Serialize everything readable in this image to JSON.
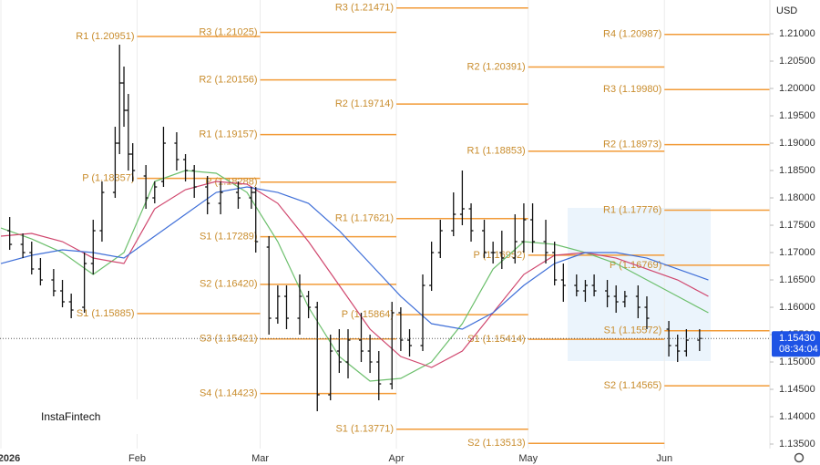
{
  "chart_data": {
    "type": "ohlc",
    "currency": "USD",
    "watermark": "InstaFintech",
    "xlim": [
      0,
      175
    ],
    "ylim": [
      1.13417,
      1.21617
    ],
    "grid": "x",
    "xticks": [
      {
        "value": 0,
        "label": "2026"
      },
      {
        "value": 31,
        "label": "Feb"
      },
      {
        "value": 59,
        "label": "Mar"
      },
      {
        "value": 90,
        "label": "Apr"
      },
      {
        "value": 120,
        "label": "May"
      },
      {
        "value": 151,
        "label": "Jun"
      }
    ],
    "yticks": [
      {
        "value": 1.135,
        "label": "1.13500"
      },
      {
        "value": 1.14,
        "label": "1.14000"
      },
      {
        "value": 1.145,
        "label": "1.14500"
      },
      {
        "value": 1.15,
        "label": "1.15000"
      },
      {
        "value": 1.155,
        "label": "1.15500"
      },
      {
        "value": 1.16,
        "label": "1.16000"
      },
      {
        "value": 1.165,
        "label": "1.16500"
      },
      {
        "value": 1.17,
        "label": "1.17000"
      },
      {
        "value": 1.175,
        "label": "1.17500"
      },
      {
        "value": 1.18,
        "label": "1.18000"
      },
      {
        "value": 1.185,
        "label": "1.18500"
      },
      {
        "value": 1.19,
        "label": "1.19000"
      },
      {
        "value": 1.195,
        "label": "1.19500"
      },
      {
        "value": 1.2,
        "label": "1.20000"
      },
      {
        "value": 1.205,
        "label": "1.20500"
      },
      {
        "value": 1.21,
        "label": "1.21000"
      }
    ],
    "last_price": {
      "value": 1.1543,
      "label": "1.15430",
      "color": "#1e53e5"
    },
    "countdown": "08:34:04",
    "bar_color": "#111111",
    "ohlc": {
      "x": [
        2,
        5,
        7,
        9,
        12,
        14,
        16,
        19,
        21,
        23,
        26,
        27,
        28,
        29,
        30,
        33,
        35,
        37,
        40,
        42,
        44,
        47,
        50,
        54,
        57,
        58,
        61,
        63,
        65,
        68,
        70,
        72,
        75,
        77,
        79,
        82,
        84,
        86,
        89,
        91,
        93,
        96,
        98,
        100,
        103,
        105,
        107,
        110,
        112,
        114,
        117,
        119,
        121,
        124,
        126,
        128,
        131,
        133,
        135,
        138,
        140,
        142,
        145,
        147,
        152,
        154,
        156,
        159
      ],
      "open": [
        1.174,
        1.1715,
        1.17,
        1.167,
        1.165,
        1.163,
        1.161,
        1.16,
        1.168,
        1.174,
        1.181,
        1.19,
        1.201,
        1.196,
        1.188,
        1.184,
        1.18,
        1.183,
        1.19,
        1.187,
        1.185,
        1.182,
        1.179,
        1.181,
        1.18,
        1.181,
        1.171,
        1.158,
        1.162,
        1.158,
        1.162,
        1.16,
        1.144,
        1.152,
        1.15,
        1.154,
        1.152,
        1.15,
        1.146,
        1.159,
        1.154,
        1.153,
        1.164,
        1.17,
        1.174,
        1.177,
        1.178,
        1.174,
        1.17,
        1.17,
        1.169,
        1.172,
        1.176,
        1.172,
        1.17,
        1.165,
        1.164,
        1.163,
        1.164,
        1.163,
        1.162,
        1.161,
        1.162,
        1.16,
        1.156,
        1.153,
        1.152,
        1.154
      ],
      "high": [
        1.1765,
        1.1735,
        1.172,
        1.169,
        1.167,
        1.165,
        1.1625,
        1.17,
        1.176,
        1.183,
        1.193,
        1.208,
        1.204,
        1.199,
        1.19,
        1.186,
        1.183,
        1.193,
        1.192,
        1.188,
        1.186,
        1.184,
        1.183,
        1.183,
        1.182,
        1.182,
        1.173,
        1.164,
        1.164,
        1.166,
        1.163,
        1.161,
        1.155,
        1.156,
        1.156,
        1.159,
        1.155,
        1.152,
        1.161,
        1.16,
        1.156,
        1.166,
        1.172,
        1.176,
        1.181,
        1.185,
        1.179,
        1.176,
        1.172,
        1.174,
        1.177,
        1.179,
        1.179,
        1.176,
        1.172,
        1.168,
        1.166,
        1.165,
        1.166,
        1.165,
        1.164,
        1.163,
        1.164,
        1.162,
        1.1575,
        1.155,
        1.156,
        1.156
      ],
      "low": [
        1.1705,
        1.169,
        1.166,
        1.164,
        1.162,
        1.16,
        1.158,
        1.159,
        1.166,
        1.172,
        1.18,
        1.188,
        1.193,
        1.185,
        1.183,
        1.178,
        1.179,
        1.182,
        1.185,
        1.183,
        1.18,
        1.177,
        1.177,
        1.178,
        1.178,
        1.17,
        1.155,
        1.157,
        1.156,
        1.155,
        1.158,
        1.141,
        1.143,
        1.148,
        1.147,
        1.15,
        1.148,
        1.143,
        1.145,
        1.152,
        1.151,
        1.152,
        1.163,
        1.169,
        1.173,
        1.175,
        1.172,
        1.169,
        1.168,
        1.167,
        1.168,
        1.17,
        1.17,
        1.168,
        1.164,
        1.161,
        1.162,
        1.161,
        1.162,
        1.16,
        1.159,
        1.16,
        1.158,
        1.156,
        1.151,
        1.15,
        1.151,
        1.152
      ],
      "close": [
        1.1715,
        1.17,
        1.167,
        1.165,
        1.163,
        1.161,
        1.1595,
        1.168,
        1.174,
        1.181,
        1.19,
        1.201,
        1.196,
        1.188,
        1.185,
        1.18,
        1.182,
        1.19,
        1.187,
        1.185,
        1.182,
        1.179,
        1.181,
        1.18,
        1.181,
        1.172,
        1.158,
        1.162,
        1.158,
        1.162,
        1.16,
        1.144,
        1.152,
        1.15,
        1.154,
        1.152,
        1.15,
        1.146,
        1.159,
        1.154,
        1.153,
        1.164,
        1.17,
        1.174,
        1.177,
        1.178,
        1.174,
        1.17,
        1.17,
        1.169,
        1.172,
        1.176,
        1.172,
        1.17,
        1.165,
        1.164,
        1.163,
        1.164,
        1.163,
        1.162,
        1.161,
        1.162,
        1.16,
        1.158,
        1.153,
        1.152,
        1.154,
        1.1543
      ]
    },
    "ma_x": [
      0,
      7,
      14,
      21,
      28,
      35,
      42,
      49,
      56,
      63,
      70,
      77,
      84,
      91,
      98,
      105,
      112,
      119,
      126,
      133,
      140,
      147,
      154,
      161
    ],
    "moving_averages": [
      {
        "color": "#6cbf6c",
        "values": [
          1.1745,
          1.1725,
          1.17,
          1.166,
          1.17,
          1.183,
          1.185,
          1.1845,
          1.181,
          1.172,
          1.16,
          1.151,
          1.1465,
          1.147,
          1.15,
          1.157,
          1.167,
          1.172,
          1.1715,
          1.17,
          1.168,
          1.165,
          1.162,
          1.159
        ]
      },
      {
        "color": "#d0476e",
        "values": [
          1.173,
          1.1735,
          1.172,
          1.169,
          1.168,
          1.178,
          1.1815,
          1.183,
          1.1825,
          1.179,
          1.172,
          1.164,
          1.156,
          1.151,
          1.149,
          1.152,
          1.159,
          1.166,
          1.1695,
          1.17,
          1.169,
          1.167,
          1.165,
          1.162
        ]
      },
      {
        "color": "#3f6fd8",
        "values": [
          1.168,
          1.1695,
          1.1705,
          1.17,
          1.169,
          1.173,
          1.177,
          1.181,
          1.182,
          1.181,
          1.179,
          1.174,
          1.168,
          1.162,
          1.157,
          1.156,
          1.159,
          1.164,
          1.168,
          1.17,
          1.17,
          1.169,
          1.167,
          1.165
        ]
      }
    ],
    "pivot_color": "#f29b38",
    "pivot_label_color": "#c98d2e",
    "pivot_periods": [
      {
        "period_start": 31,
        "period_end": 59,
        "levels": [
          {
            "label": "R1 (1.20951)",
            "value": 1.20951
          },
          {
            "label": "P (1.18357)",
            "value": 1.18357
          },
          {
            "label": "S1 (1.15885)",
            "value": 1.15885
          }
        ]
      },
      {
        "period_start": 59,
        "period_end": 90,
        "levels": [
          {
            "label": "R3 (1.21025)",
            "value": 1.21025
          },
          {
            "label": "R2 (1.20156)",
            "value": 1.20156
          },
          {
            "label": "R1 (1.19157)",
            "value": 1.19157
          },
          {
            "label": "P (1.18288)",
            "value": 1.18288
          },
          {
            "label": "S1 (1.17289)",
            "value": 1.17289
          },
          {
            "label": "S2 (1.16420)",
            "value": 1.1642
          },
          {
            "label": "S3 (1.15421)",
            "value": 1.15421
          },
          {
            "label": "S4 (1.14423)",
            "value": 1.14423
          }
        ]
      },
      {
        "period_start": 90,
        "period_end": 120,
        "levels": [
          {
            "label": "R3 (1.21471)",
            "value": 1.21471
          },
          {
            "label": "R2 (1.19714)",
            "value": 1.19714
          },
          {
            "label": "R1 (1.17621)",
            "value": 1.17621
          },
          {
            "label": "P (1.15864)",
            "value": 1.15864
          },
          {
            "label": "S1 (1.13771)",
            "value": 1.13771
          }
        ]
      },
      {
        "period_start": 120,
        "period_end": 151,
        "levels": [
          {
            "label": "R2 (1.20391)",
            "value": 1.20391
          },
          {
            "label": "R1 (1.18853)",
            "value": 1.18853
          },
          {
            "label": "P (1.16952)",
            "value": 1.16952
          },
          {
            "label": "S1 (1.15414)",
            "value": 1.15414
          },
          {
            "label": "S2 (1.13513)",
            "value": 1.13513
          }
        ]
      },
      {
        "period_start": 151,
        "levels": [
          {
            "label": "R4 (1.20987)",
            "value": 1.20987
          },
          {
            "label": "R3 (1.19980)",
            "value": 1.1998
          },
          {
            "label": "R2 (1.18973)",
            "value": 1.18973
          },
          {
            "label": "R1 (1.17776)",
            "value": 1.17776
          },
          {
            "label": "P (1.16769)",
            "value": 1.16769
          },
          {
            "label": "S1 (1.15572)",
            "value": 1.15572
          },
          {
            "label": "S2 (1.14565)",
            "value": 1.14565
          }
        ]
      }
    ]
  }
}
